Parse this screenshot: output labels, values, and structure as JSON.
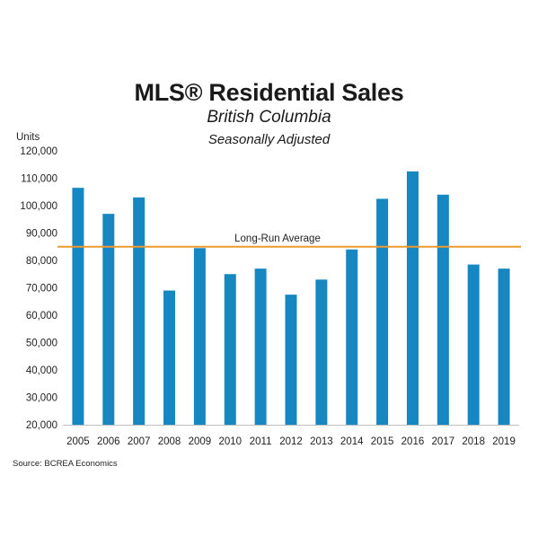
{
  "chart_data": {
    "type": "bar",
    "title": "MLS® Residential Sales",
    "subtitle": "British Columbia",
    "subtitle2": "Seasonally Adjusted",
    "ylabel": "Units",
    "xlabel": "",
    "categories": [
      "2005",
      "2006",
      "2007",
      "2008",
      "2009",
      "2010",
      "2011",
      "2012",
      "2013",
      "2014",
      "2015",
      "2016",
      "2017",
      "2018",
      "2019"
    ],
    "values": [
      106500,
      97000,
      103000,
      69000,
      84500,
      75000,
      77000,
      67500,
      73000,
      84000,
      102500,
      112500,
      104000,
      78500,
      77000
    ],
    "ylim": [
      20000,
      120000
    ],
    "yticks": [
      "20,000",
      "30,000",
      "40,000",
      "50,000",
      "60,000",
      "70,000",
      "80,000",
      "90,000",
      "100,000",
      "110,000",
      "120,000"
    ],
    "bar_color": "#1787c2",
    "reference_line": {
      "label": "Long-Run Average",
      "value": 85000,
      "color": "#ee9a2e"
    },
    "grid": false,
    "legend": "none",
    "source": "Source: BCREA Economics"
  }
}
